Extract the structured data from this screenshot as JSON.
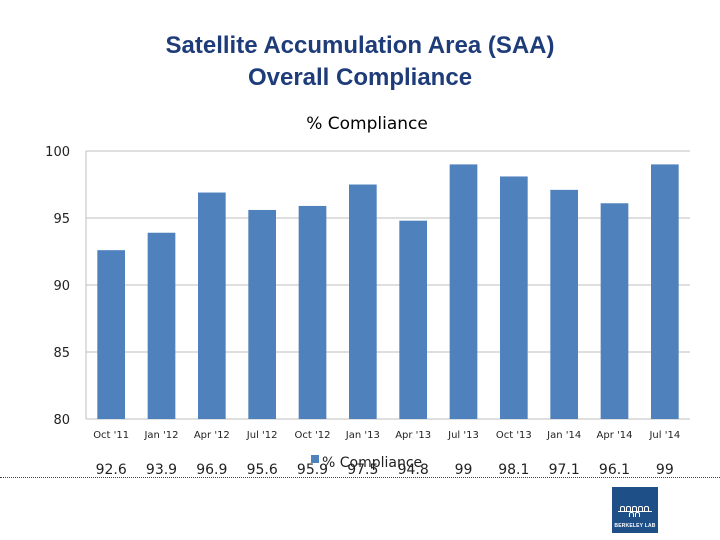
{
  "slide": {
    "title_line1": "Satellite Accumulation Area (SAA)",
    "title_line2": "Overall Compliance"
  },
  "logo": {
    "text": "BERKELEY LAB"
  },
  "chart_data": {
    "type": "bar",
    "title": "% Compliance",
    "categories": [
      "Oct '11",
      "Jan '12",
      "Apr '12",
      "Jul '12",
      "Oct '12",
      "Jan '13",
      "Apr '13",
      "Jul '13",
      "Oct '13",
      "Jan '14",
      "Apr '14",
      "Jul '14"
    ],
    "series": [
      {
        "name": "% Compliance",
        "values": [
          92.6,
          93.9,
          96.9,
          95.6,
          95.9,
          97.5,
          94.8,
          99,
          98.1,
          97.1,
          96.1,
          99
        ]
      }
    ],
    "ylim": [
      80,
      100
    ],
    "yticks": [
      80,
      85,
      90,
      95,
      100
    ],
    "grid": true,
    "legend": "bottom-center",
    "bar_color": "#4f81bd",
    "grid_color": "#bfbfbf"
  }
}
